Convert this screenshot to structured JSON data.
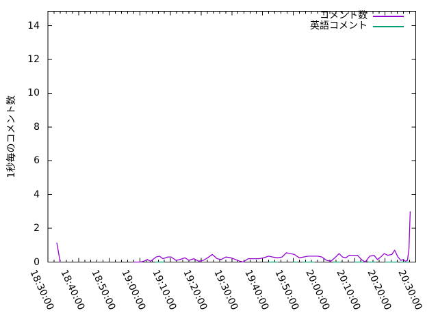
{
  "chart_data": {
    "type": "line",
    "title": "",
    "xlabel": "",
    "ylabel": "1秒毎のコメント数",
    "x_tick_labels": [
      "18:30:00",
      "18:40:00",
      "18:50:00",
      "19:00:00",
      "19:10:00",
      "19:20:00",
      "19:30:00",
      "19:40:00",
      "19:50:00",
      "20:00:00",
      "20:10:00",
      "20:20:00",
      "20:30:00"
    ],
    "x_major_tick_minutes": 10,
    "x_minor_tick_minutes": 2,
    "x_range_minutes": [
      0,
      120
    ],
    "y_ticks": [
      0,
      2,
      4,
      6,
      8,
      10,
      12,
      14
    ],
    "ylim": [
      0,
      14.85
    ],
    "grid": false,
    "legend_position": "top-right-inside",
    "background_color": "#ffffff",
    "axis_color": "#000000",
    "series": [
      {
        "name": "コメント数",
        "color": "#9400d3",
        "segments": [
          [
            [
              2.9,
              1.15
            ],
            [
              4.0,
              0
            ]
          ],
          [
            [
              27.9,
              0
            ],
            [
              30.2,
              0
            ],
            [
              31.3,
              0.05
            ],
            [
              32.4,
              0.15
            ],
            [
              33.5,
              0.05
            ],
            [
              35.3,
              0.3
            ],
            [
              36.4,
              0.35
            ],
            [
              37.5,
              0.2
            ],
            [
              39.1,
              0.3
            ],
            [
              40.2,
              0.3
            ],
            [
              41.8,
              0.1
            ],
            [
              43.1,
              0.15
            ],
            [
              44.7,
              0.25
            ],
            [
              46.0,
              0.1
            ],
            [
              47.6,
              0.2
            ],
            [
              49.2,
              0.05
            ],
            [
              50.7,
              0.1
            ],
            [
              52.1,
              0.25
            ],
            [
              53.6,
              0.45
            ],
            [
              55.2,
              0.2
            ],
            [
              56.5,
              0.15
            ],
            [
              58.1,
              0.3
            ],
            [
              59.7,
              0.25
            ],
            [
              61.2,
              0.15
            ],
            [
              62.6,
              0.05
            ],
            [
              63.7,
              0
            ],
            [
              65.3,
              0.2
            ],
            [
              67.0,
              0.2
            ],
            [
              68.8,
              0.2
            ],
            [
              70.4,
              0.25
            ],
            [
              72.0,
              0.35
            ],
            [
              73.3,
              0.3
            ],
            [
              74.9,
              0.25
            ],
            [
              76.4,
              0.3
            ],
            [
              77.8,
              0.55
            ],
            [
              79.1,
              0.5
            ],
            [
              80.4,
              0.45
            ],
            [
              82.0,
              0.25
            ],
            [
              83.4,
              0.3
            ],
            [
              84.9,
              0.35
            ],
            [
              86.5,
              0.35
            ],
            [
              88.0,
              0.35
            ],
            [
              89.4,
              0.3
            ],
            [
              90.9,
              0.1
            ],
            [
              92.3,
              0.05
            ],
            [
              93.9,
              0.3
            ],
            [
              95.0,
              0.5
            ],
            [
              96.1,
              0.3
            ],
            [
              97.2,
              0.25
            ],
            [
              98.3,
              0.4
            ],
            [
              99.7,
              0.4
            ],
            [
              101.0,
              0.4
            ],
            [
              102.3,
              0.15
            ],
            [
              103.5,
              0
            ],
            [
              105.0,
              0.35
            ],
            [
              106.4,
              0.4
            ],
            [
              107.5,
              0.15
            ],
            [
              108.6,
              0.3
            ],
            [
              109.7,
              0.5
            ],
            [
              110.8,
              0.4
            ],
            [
              112.2,
              0.45
            ],
            [
              113.1,
              0.7
            ],
            [
              114.2,
              0.3
            ],
            [
              115.1,
              0.1
            ],
            [
              116.0,
              0.15
            ],
            [
              116.6,
              0.05
            ],
            [
              117.3,
              0.1
            ],
            [
              117.8,
              0.8
            ],
            [
              118.2,
              3.0
            ]
          ]
        ]
      },
      {
        "name": "英語コメント",
        "color": "#009e73",
        "segments": [
          [
            [
              35,
              0
            ],
            [
              38,
              0
            ]
          ],
          [
            [
              72,
              0
            ],
            [
              75,
              0
            ]
          ],
          [
            [
              80,
              0
            ],
            [
              81.5,
              0
            ]
          ],
          [
            [
              83,
              0
            ],
            [
              87,
              0
            ]
          ],
          [
            [
              93,
              0
            ],
            [
              95.5,
              0
            ]
          ],
          [
            [
              100,
              0
            ],
            [
              103,
              0
            ]
          ],
          [
            [
              104.5,
              0
            ],
            [
              107,
              0
            ]
          ],
          [
            [
              110,
              0
            ],
            [
              114,
              0
            ]
          ],
          [
            [
              115,
              0
            ],
            [
              117.8,
              0
            ]
          ]
        ]
      }
    ]
  }
}
